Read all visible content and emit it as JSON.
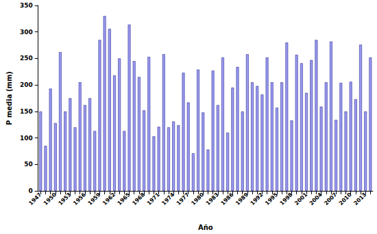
{
  "chart_data": {
    "type": "bar",
    "x_label": "Año",
    "y_label": "P media (mm)",
    "categories": [
      "1947",
      null,
      null,
      "1950",
      null,
      null,
      "1953",
      null,
      null,
      "1956",
      null,
      null,
      "1959",
      null,
      null,
      "1962",
      null,
      null,
      "1965",
      null,
      null,
      "1968",
      null,
      null,
      "1971",
      null,
      null,
      "1974",
      null,
      null,
      "1977",
      null,
      null,
      "1980",
      null,
      null,
      "1983",
      null,
      null,
      "1986",
      null,
      null,
      "1989",
      null,
      null,
      "1992",
      null,
      null,
      "1995",
      null,
      null,
      "1998",
      null,
      null,
      "2001",
      null,
      null,
      "2004",
      null,
      null,
      "2007",
      null,
      null,
      "2010",
      null,
      null,
      "2013",
      null
    ],
    "values": [
      150,
      85,
      193,
      128,
      262,
      150,
      175,
      120,
      205,
      162,
      175,
      113,
      285,
      330,
      306,
      218,
      250,
      113,
      314,
      245,
      215,
      152,
      253,
      103,
      121,
      258,
      120,
      131,
      124,
      223,
      167,
      71,
      229,
      148,
      78,
      227,
      162,
      252,
      110,
      195,
      234,
      150,
      258,
      205,
      198,
      182,
      252,
      205,
      157,
      205,
      280,
      133,
      257,
      241,
      185,
      247,
      285,
      159,
      205,
      282,
      134,
      204,
      150,
      206,
      173,
      276,
      150,
      252
    ],
    "color": "#9999ee",
    "ylim": [
      0,
      350
    ],
    "yticks": [
      0,
      50,
      100,
      150,
      200,
      250,
      300,
      350
    ],
    "grid": false
  }
}
